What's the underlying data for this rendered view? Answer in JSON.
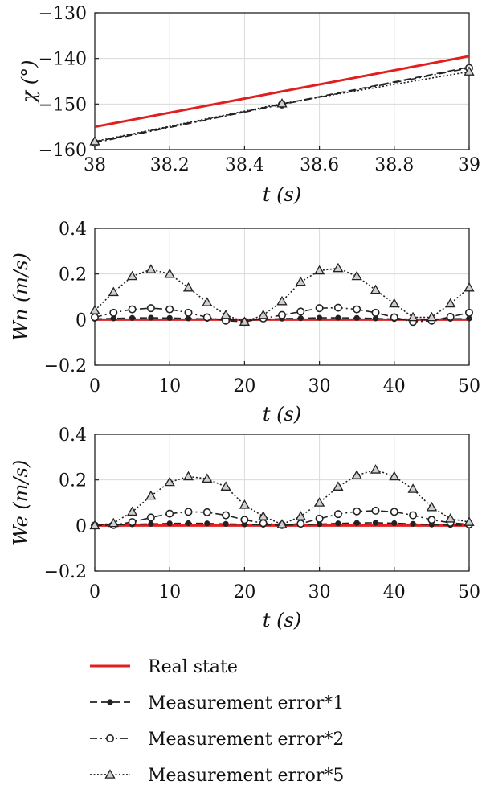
{
  "chart_data": [
    {
      "type": "line",
      "ylabel": "χ (°)",
      "xlabel": "t (s)",
      "xlim": [
        38,
        39
      ],
      "ylim": [
        -160,
        -130
      ],
      "xticks": [
        "38",
        "38.2",
        "38.4",
        "38.6",
        "38.8",
        "39"
      ],
      "yticks": [
        "−130",
        "−140",
        "−150",
        "−160"
      ],
      "grid": true,
      "series": [
        {
          "name": "Real state",
          "color": "#e02020",
          "style": "solid",
          "marker": "none",
          "x": [
            38,
            39
          ],
          "y": [
            -155.0,
            -139.5
          ]
        },
        {
          "name": "Measurement error*1",
          "color": "#222222",
          "style": "dashed",
          "marker": "star",
          "x": [
            38,
            38.5,
            39
          ],
          "y": [
            -158.3,
            -150.0,
            -141.9
          ]
        },
        {
          "name": "Measurement error*2",
          "color": "#222222",
          "style": "dashdot",
          "marker": "circle",
          "x": [
            38,
            38.5,
            39
          ],
          "y": [
            -158.5,
            -150.1,
            -142.1
          ]
        },
        {
          "name": "Measurement error*5",
          "color": "#222222",
          "style": "dotted",
          "marker": "triangle",
          "x": [
            38,
            38.5,
            39
          ],
          "y": [
            -158.2,
            -149.9,
            -142.9
          ]
        }
      ]
    },
    {
      "type": "line",
      "ylabel": "Wn (m/s)",
      "xlabel": "t (s)",
      "xlim": [
        0,
        50
      ],
      "ylim": [
        -0.2,
        0.4
      ],
      "xticks": [
        "0",
        "10",
        "20",
        "30",
        "40",
        "50"
      ],
      "yticks": [
        "0.4",
        "0.2",
        "0",
        "−0.2"
      ],
      "grid": true,
      "series": [
        {
          "name": "Real state",
          "color": "#e02020",
          "style": "solid",
          "marker": "none",
          "x": [
            0,
            50
          ],
          "y": [
            0,
            0
          ]
        },
        {
          "name": "Measurement error*1",
          "color": "#222222",
          "style": "dashed",
          "marker": "star",
          "x": [
            0,
            2.5,
            5,
            7.5,
            10,
            12.5,
            15,
            17.5,
            20,
            22.5,
            25,
            27.5,
            30,
            32.5,
            35,
            37.5,
            40,
            42.5,
            45,
            47.5,
            50
          ],
          "y": [
            0.003,
            0.005,
            0.007,
            0.008,
            0.007,
            0.005,
            0.003,
            0.001,
            -0.004,
            0.001,
            0.004,
            0.006,
            0.008,
            0.008,
            0.007,
            0.005,
            0.002,
            -0.003,
            0.0,
            0.003,
            0.005
          ]
        },
        {
          "name": "Measurement error*2",
          "color": "#222222",
          "style": "dashdot",
          "marker": "circle",
          "x": [
            0,
            2.5,
            5,
            7.5,
            10,
            12.5,
            15,
            17.5,
            20,
            22.5,
            25,
            27.5,
            30,
            32.5,
            35,
            37.5,
            40,
            42.5,
            45,
            47.5,
            50
          ],
          "y": [
            0.01,
            0.03,
            0.045,
            0.05,
            0.045,
            0.03,
            0.01,
            -0.005,
            -0.01,
            0.005,
            0.02,
            0.035,
            0.05,
            0.052,
            0.045,
            0.03,
            0.01,
            -0.01,
            -0.005,
            0.012,
            0.03
          ]
        },
        {
          "name": "Measurement error*5",
          "color": "#222222",
          "style": "dotted",
          "marker": "triangle",
          "x": [
            0,
            2.5,
            5,
            7.5,
            10,
            12.5,
            15,
            17.5,
            20,
            22.5,
            25,
            27.5,
            30,
            32.5,
            35,
            37.5,
            40,
            42.5,
            45,
            47.5,
            50
          ],
          "y": [
            0.04,
            0.12,
            0.19,
            0.22,
            0.2,
            0.14,
            0.075,
            0.02,
            -0.01,
            0.02,
            0.08,
            0.165,
            0.215,
            0.225,
            0.19,
            0.13,
            0.07,
            0.01,
            0.01,
            0.07,
            0.14
          ]
        }
      ]
    },
    {
      "type": "line",
      "ylabel": "We (m/s)",
      "xlabel": "t (s)",
      "xlim": [
        0,
        50
      ],
      "ylim": [
        -0.2,
        0.4
      ],
      "xticks": [
        "0",
        "10",
        "20",
        "30",
        "40",
        "50"
      ],
      "yticks": [
        "0.4",
        "0.2",
        "0",
        "−0.2"
      ],
      "grid": true,
      "series": [
        {
          "name": "Real state",
          "color": "#e02020",
          "style": "solid",
          "marker": "none",
          "x": [
            0,
            50
          ],
          "y": [
            0,
            0
          ]
        },
        {
          "name": "Measurement error*1",
          "color": "#222222",
          "style": "dashed",
          "marker": "star",
          "x": [
            0,
            2.5,
            5,
            7.5,
            10,
            12.5,
            15,
            17.5,
            20,
            22.5,
            25,
            27.5,
            30,
            32.5,
            35,
            37.5,
            40,
            42.5,
            45,
            47.5,
            50
          ],
          "y": [
            0.002,
            0.003,
            0.005,
            0.007,
            0.009,
            0.01,
            0.009,
            0.007,
            0.005,
            0.003,
            0.001,
            0.003,
            0.006,
            0.009,
            0.011,
            0.012,
            0.01,
            0.007,
            0.004,
            0.002,
            0.001
          ]
        },
        {
          "name": "Measurement error*2",
          "color": "#222222",
          "style": "dashdot",
          "marker": "circle",
          "x": [
            0,
            2.5,
            5,
            7.5,
            10,
            12.5,
            15,
            17.5,
            20,
            22.5,
            25,
            27.5,
            30,
            32.5,
            35,
            37.5,
            40,
            42.5,
            45,
            47.5,
            50
          ],
          "y": [
            0.0,
            0.002,
            0.015,
            0.035,
            0.052,
            0.06,
            0.058,
            0.045,
            0.025,
            0.01,
            0.002,
            0.008,
            0.03,
            0.05,
            0.062,
            0.065,
            0.06,
            0.045,
            0.025,
            0.012,
            0.005
          ]
        },
        {
          "name": "Measurement error*5",
          "color": "#222222",
          "style": "dotted",
          "marker": "triangle",
          "x": [
            0,
            2.5,
            5,
            7.5,
            10,
            12.5,
            15,
            17.5,
            20,
            22.5,
            25,
            27.5,
            30,
            32.5,
            35,
            37.5,
            40,
            42.5,
            45,
            47.5,
            50
          ],
          "y": [
            0.0,
            0.01,
            0.06,
            0.13,
            0.19,
            0.215,
            0.205,
            0.17,
            0.09,
            0.04,
            0.005,
            0.04,
            0.1,
            0.17,
            0.22,
            0.245,
            0.215,
            0.16,
            0.08,
            0.03,
            0.015
          ]
        }
      ]
    }
  ],
  "legend": {
    "entries": [
      {
        "label": "Real state",
        "color": "#e02020",
        "style": "solid",
        "marker": "none"
      },
      {
        "label": "Measurement error*1",
        "color": "#222222",
        "style": "dashed",
        "marker": "star"
      },
      {
        "label": "Measurement error*2",
        "color": "#222222",
        "style": "dashdot",
        "marker": "circle"
      },
      {
        "label": "Measurement error*5",
        "color": "#222222",
        "style": "dotted",
        "marker": "triangle"
      }
    ]
  }
}
